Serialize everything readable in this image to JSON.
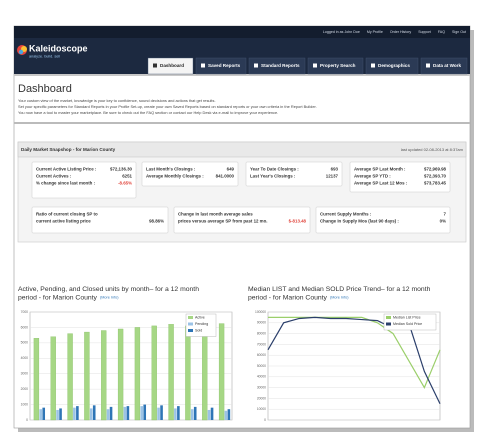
{
  "header": {
    "top_links": [
      "Logged in as John Doe",
      "My Profile",
      "Order History",
      "Support",
      "FAQ",
      "Sign Out"
    ],
    "logo": "Kaleidoscope",
    "tagline": "analyze. build. sell"
  },
  "tabs": [
    "Dashboard",
    "Saved Reports",
    "Standard Reports",
    "Property Search",
    "Demographics",
    "Data at Work"
  ],
  "page": {
    "title": "Dashboard",
    "intro": [
      "Your custom view of the market, knowledge is your key to confidence, sound decisions and actions that get results.",
      "Set your specific parameters for Standard Reports in your Profile Set-up, create your own Saved Reports based on standard reports or your own criteria in the Report Builder.",
      "You now have a tool to master your marketplace. Be sure to check out the FAQ section or contact our Help Desk via e-mail to improve your experience."
    ]
  },
  "snapshot": {
    "title": "Daily Market Snapshop - for Marion County",
    "updated": "last updated 02-08-2013 at 8:37am",
    "cards": [
      {
        "rows": [
          {
            "label": "Current Active Listing Price :",
            "value": "$72,136.30"
          },
          {
            "label": "Current Actives :",
            "value": "6251"
          },
          {
            "label": "% change since last month :",
            "value": "-8.65%",
            "color": "#e0433a"
          }
        ]
      },
      {
        "rows": [
          {
            "label": "Last Month's Closings :",
            "value": "649"
          },
          {
            "label": "Average Monthly Closings :",
            "value": "841.0000"
          }
        ]
      },
      {
        "rows": [
          {
            "label": "Year To Date Closings :",
            "value": "693"
          },
          {
            "label": "Last Year's Closings :",
            "value": "12137"
          }
        ]
      },
      {
        "rows": [
          {
            "label": "Average SP Last Month :",
            "value": "$72,969.98"
          },
          {
            "label": "Average SP YTD :",
            "value": "$72,393.70"
          },
          {
            "label": "Average SP Last 12 Mos :",
            "value": "$73,783.45"
          }
        ]
      },
      {
        "rows": [
          {
            "label": [
              "Ratio of current closing SP to",
              "current active listing price"
            ],
            "value": "98.86%"
          }
        ]
      },
      {
        "rows": [
          {
            "label": [
              "Change in last month average sales",
              "prices versus average SP from past 12 mo."
            ],
            "value": "$-813.48",
            "color": "#e0433a"
          }
        ]
      },
      {
        "rows": [
          {
            "label": "Current Supply Months :",
            "value": "7"
          },
          {
            "label": "Change in Supply Mos (last 90 days) :",
            "value": "0%"
          }
        ]
      }
    ]
  },
  "chart_data": [
    {
      "type": "bar",
      "title": [
        "Active, Pending, and Closed units by month– for a 12 month",
        "period - for Marion County"
      ],
      "more_info": "(More Info)",
      "ylim": [
        0,
        7000
      ],
      "yticks": [
        0,
        1000,
        2000,
        3000,
        4000,
        5000,
        6000,
        7000
      ],
      "grid": true,
      "series": [
        {
          "name": "Active",
          "color": "#a6d785",
          "values": [
            5300,
            5400,
            5600,
            5700,
            5800,
            5900,
            6000,
            6100,
            6200,
            6100,
            6200,
            6250
          ]
        },
        {
          "name": "Pending",
          "color": "#9cc3e6",
          "values": [
            700,
            650,
            800,
            750,
            700,
            850,
            900,
            800,
            750,
            700,
            650,
            600
          ]
        },
        {
          "name": "Sold",
          "color": "#2e75b6",
          "values": [
            800,
            750,
            900,
            950,
            850,
            900,
            1000,
            950,
            900,
            850,
            800,
            700
          ]
        }
      ]
    },
    {
      "type": "line",
      "title": [
        "Median LIST and Median SOLD Price Trend– for a 12 month",
        "period - for Marion County"
      ],
      "more_info": "(More Info)",
      "ylim": [
        0,
        100000
      ],
      "yticks": [
        0,
        10000,
        20000,
        30000,
        40000,
        50000,
        60000,
        70000,
        80000,
        90000,
        100000
      ],
      "grid": true,
      "series": [
        {
          "name": "Median List Price",
          "color": "#9bcf6b",
          "values": [
            95000,
            95000,
            95000,
            95000,
            95000,
            95000,
            95000,
            90000,
            80000,
            55000,
            30000,
            65000
          ]
        },
        {
          "name": "Median Sold Price",
          "color": "#2b3f6b",
          "values": [
            65000,
            90000,
            94000,
            95000,
            94000,
            94000,
            93000,
            92000,
            85000,
            90000,
            45000,
            15000
          ]
        }
      ]
    }
  ]
}
